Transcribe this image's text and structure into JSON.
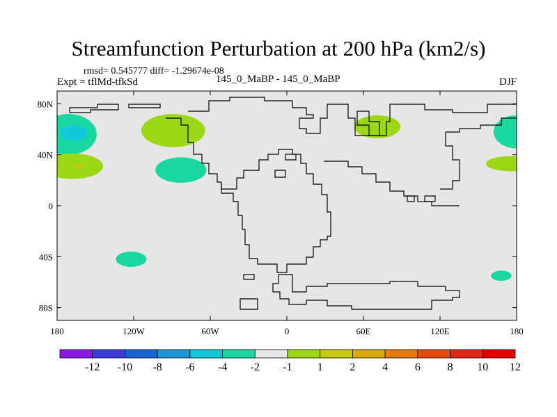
{
  "chart_data": {
    "type": "heatmap",
    "title": "Streamfunction Perturbation at 200 hPa (km2/s)",
    "stats": "rmsd= 0.545777 diff= -1.29674e-08",
    "left_label": "Expt = tflMd-tfkSd",
    "center_label": "145_0_MaBP - 145_0_MaBP",
    "right_label": "DJF",
    "xlim": [
      -180,
      180
    ],
    "ylim": [
      -90,
      90
    ],
    "x_ticks": [
      {
        "value": -180,
        "label": "180"
      },
      {
        "value": -120,
        "label": "120W"
      },
      {
        "value": -60,
        "label": "60W"
      },
      {
        "value": 0,
        "label": "0"
      },
      {
        "value": 60,
        "label": "60E"
      },
      {
        "value": 120,
        "label": "120E"
      },
      {
        "value": 180,
        "label": "180"
      }
    ],
    "y_ticks": [
      {
        "value": 80,
        "label": "80N"
      },
      {
        "value": 40,
        "label": "40N"
      },
      {
        "value": 0,
        "label": "0"
      },
      {
        "value": -40,
        "label": "40S"
      },
      {
        "value": -80,
        "label": "80S"
      }
    ],
    "colorbar": {
      "colors": [
        "#8b1ae6",
        "#3c3cdc",
        "#1464d2",
        "#1e96dc",
        "#11c8dc",
        "#19d7a0",
        "#e6e6e6",
        "#9bd714",
        "#c8c80e",
        "#dcaa0a",
        "#e67d0a",
        "#e64b0a",
        "#dc2814",
        "#e60000"
      ],
      "labels": [
        "-12",
        "-10",
        "-8",
        "-6",
        "-4",
        "-2",
        "-1",
        "1",
        "2",
        "4",
        "6",
        "8",
        "10",
        "12"
      ]
    },
    "anomalies": [
      {
        "lon": -171,
        "lat": 56,
        "rlon": 22,
        "rlat": 16,
        "color": "#19d7a0"
      },
      {
        "lon": -167,
        "lat": 57,
        "rlon": 11,
        "rlat": 6,
        "color": "#11c8dc"
      },
      {
        "lon": -168,
        "lat": 31,
        "rlon": 24,
        "rlat": 10,
        "color": "#9bd714"
      },
      {
        "lon": -163,
        "lat": 31,
        "rlon": 4,
        "rlat": 1.5,
        "color": "#c8c80e"
      },
      {
        "lon": -89,
        "lat": 59,
        "rlon": 25,
        "rlat": 13,
        "color": "#9bd714"
      },
      {
        "lon": -83,
        "lat": 28,
        "rlon": 20,
        "rlat": 10,
        "color": "#19d7a0"
      },
      {
        "lon": 71,
        "lat": 62,
        "rlon": 18,
        "rlat": 9,
        "color": "#9bd714"
      },
      {
        "lon": 180,
        "lat": 58,
        "rlon": 18,
        "rlat": 13,
        "color": "#19d7a0"
      },
      {
        "lon": 176,
        "lat": 33,
        "rlon": 20,
        "rlat": 6,
        "color": "#9bd714"
      },
      {
        "lon": -122,
        "lat": -42,
        "rlon": 12,
        "rlat": 6,
        "color": "#19d7a0"
      },
      {
        "lon": 168,
        "lat": -55,
        "rlon": 8,
        "rlat": 4,
        "color": "#19d7a0"
      }
    ]
  }
}
